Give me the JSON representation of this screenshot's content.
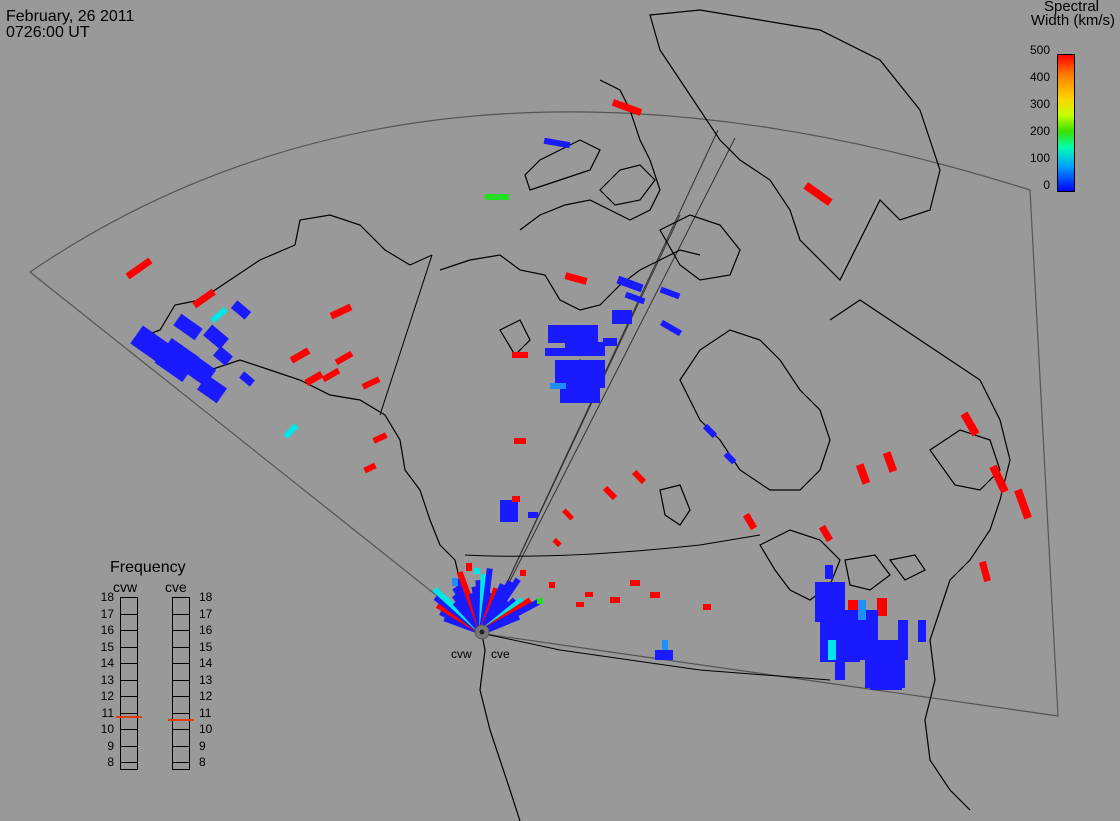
{
  "header": {
    "date": "February, 26 2011",
    "time": "0726:00 UT"
  },
  "colorbar": {
    "title_line1": "Spectral",
    "title_line2": "Width (km/s)",
    "ticks": [
      "500",
      "400",
      "300",
      "200",
      "100",
      "0"
    ],
    "range": [
      0,
      500
    ],
    "colors": [
      "#0000ff",
      "#00a0ff",
      "#00ffb0",
      "#3ce000",
      "#c6ff00",
      "#ffd400",
      "#ff7f00",
      "#ff0000"
    ]
  },
  "frequency": {
    "title": "Frequency",
    "radars": [
      {
        "name": "cvw",
        "value_mhz": 10.8
      },
      {
        "name": "cve",
        "value_mhz": 10.6
      }
    ],
    "ticks": [
      "18",
      "17",
      "16",
      "15",
      "14",
      "13",
      "12",
      "11",
      "10",
      "9",
      "8"
    ],
    "marker_color": "#e04000"
  },
  "sites": [
    "cvw",
    "cve"
  ],
  "map": {
    "background": "#999999",
    "coastline_color": "#000000",
    "fov_color": "#555555"
  }
}
